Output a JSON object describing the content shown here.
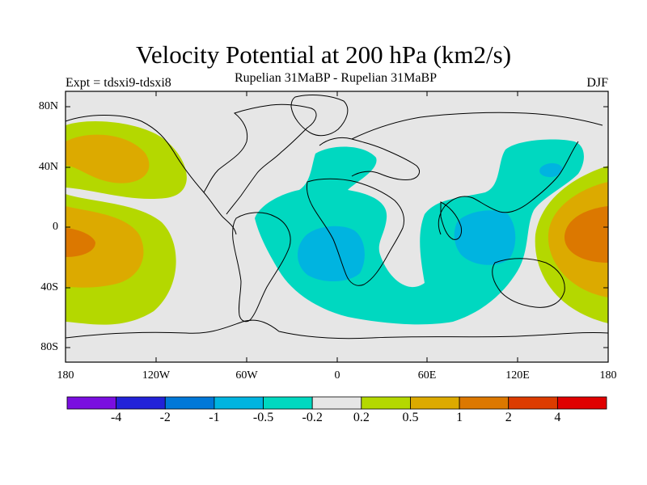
{
  "title": "Velocity Potential at 200 hPa (km2/s)",
  "subtitle": "Rupelian  31MaBP - Rupelian  31MaBP",
  "experiment": "Expt = tdsxi9-tdsxi8",
  "season": "DJF",
  "lat_labels": [
    "80N",
    "40N",
    "0",
    "40S",
    "80S"
  ],
  "lon_labels": [
    "180",
    "120W",
    "60W",
    "0",
    "60E",
    "120E",
    "180"
  ],
  "colorbar": {
    "labels": [
      "-4",
      "-2",
      "-1",
      "-0.5",
      "-0.2",
      "0.2",
      "0.5",
      "1",
      "2",
      "4"
    ],
    "colors": [
      "#7a0ee0",
      "#2222d8",
      "#0078d8",
      "#00b4e0",
      "#00d8c0",
      "#e6e6e6",
      "#b4d800",
      "#dcaa00",
      "#dc7800",
      "#dc3c00",
      "#e00000"
    ]
  }
}
